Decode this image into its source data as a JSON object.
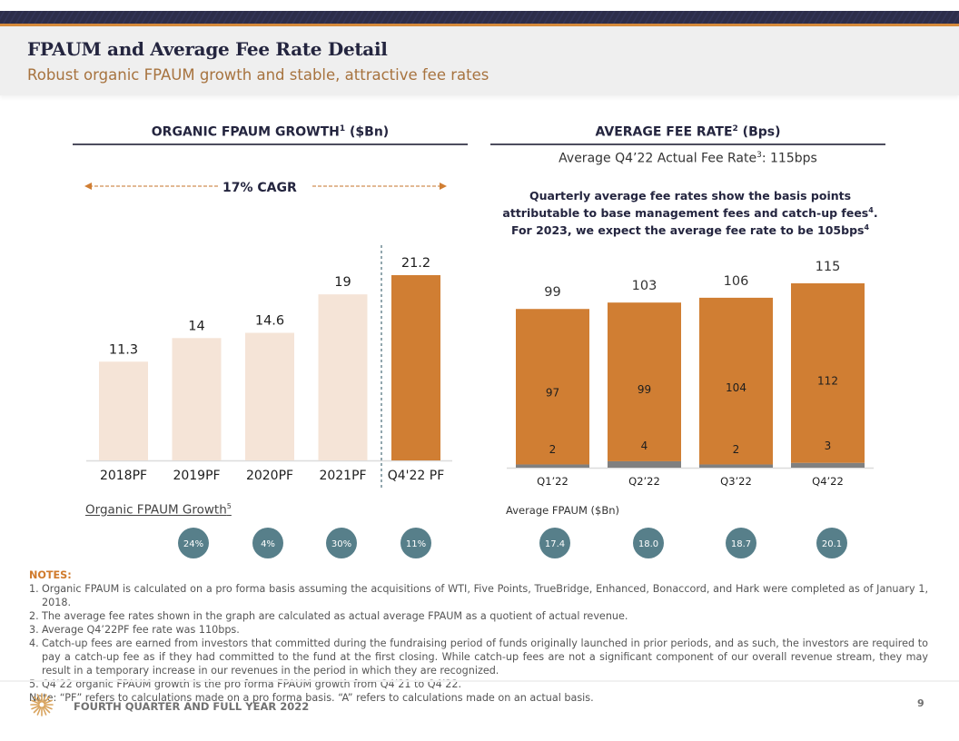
{
  "header": {
    "title": "FPAUM and Average Fee Rate Detail",
    "subtitle": "Robust organic FPAUM growth and stable, attractive fee rates"
  },
  "left_section": {
    "heading": "ORGANIC FPAUM GROWTH",
    "heading_sup": "1",
    "heading_suffix": " ($Bn)",
    "cagr_label": "17% CAGR",
    "growth_label": "Organic FPAUM Growth",
    "growth_label_sup": "5"
  },
  "right_section": {
    "heading": "AVERAGE FEE RATE",
    "heading_sup": "2",
    "heading_suffix": " (Bps)",
    "subheading": "Average Q4’22 Actual Fee Rate",
    "subheading_sup": "3",
    "subheading_suffix": ": 115bps",
    "note_part1": "Quarterly average fee rates show the basis points attributable to base management fees and catch-up fees",
    "note_sup1": "4",
    "note_part2": ". For 2023, we expect the average fee rate to be 105bps",
    "note_sup2": "4",
    "fpaum_label": "Average FPAUM ($Bn)"
  },
  "colors": {
    "navy": "#24253f",
    "orange": "#d07e33",
    "light_bar": "#f5e4d7",
    "catchup_grey": "#808080",
    "bubble": "#577f8a",
    "subtitle": "#a7733f"
  },
  "chart_data": [
    {
      "type": "bar",
      "title": "ORGANIC FPAUM GROWTH ($Bn)",
      "categories": [
        "2018PF",
        "2019PF",
        "2020PF",
        "2021PF",
        "Q4'22 PF"
      ],
      "values": [
        11.3,
        14,
        14.6,
        19,
        21.2
      ],
      "labels": [
        "11.3",
        "14",
        "14.6",
        "19",
        "21.2"
      ],
      "highlight_index": 4,
      "annotation": "17% CAGR",
      "growth_row": {
        "label": "Organic FPAUM Growth",
        "categories": [
          "2019PF",
          "2020PF",
          "2021PF",
          "Q4'22 PF"
        ],
        "values": [
          "24%",
          "4%",
          "30%",
          "11%"
        ]
      },
      "xlabel": "",
      "ylabel": "",
      "ylim": [
        0,
        21.2
      ],
      "grid": false
    },
    {
      "type": "bar",
      "stacked": true,
      "title": "AVERAGE FEE RATE (Bps)",
      "categories": [
        "Q1’22",
        "Q2’22",
        "Q3’22",
        "Q4’22"
      ],
      "series": [
        {
          "name": "Catch-up fees",
          "values": [
            2,
            4,
            2,
            3
          ],
          "color": "#808080"
        },
        {
          "name": "Base management fees",
          "values": [
            97,
            99,
            104,
            112
          ],
          "color": "#d07e33"
        }
      ],
      "totals": [
        99,
        103,
        106,
        115
      ],
      "fpaum_row": {
        "label": "Average FPAUM ($Bn)",
        "values": [
          "17.4",
          "18.0",
          "18.7",
          "20.1"
        ]
      },
      "xlabel": "",
      "ylabel": "",
      "ylim": [
        0,
        115
      ],
      "grid": false
    }
  ],
  "notes": {
    "heading": "NOTES:",
    "items": [
      {
        "num": "1.",
        "text": "Organic FPAUM is calculated on a pro forma basis assuming the acquisitions of WTI, Five Points, TrueBridge, Enhanced, Bonaccord, and Hark were completed as of January 1, 2018."
      },
      {
        "num": "2.",
        "text": "The average fee rates shown in the graph are calculated as actual average FPAUM as a quotient of actual revenue."
      },
      {
        "num": "3.",
        "text": "Average Q4’22PF fee rate was 110bps."
      },
      {
        "num": "4.",
        "text": "Catch-up fees are earned from investors that committed during the fundraising period of funds originally launched in prior periods, and as such, the investors are required to pay a catch-up fee as if they had committed to the fund at the first closing. While catch-up fees are not a significant component of our overall revenue stream, they may result in a temporary increase in our revenues in the period in which they are recognized."
      },
      {
        "num": "5.",
        "text": "Q4’22 organic FPAUM growth is the pro forma FPAUM growth from Q4’21 to Q4’22."
      }
    ],
    "footnote": "Note: “PF” refers to calculations made on a pro forma basis. “A” refers to calculations made on an actual basis."
  },
  "footer": {
    "text": "FOURTH QUARTER AND FULL YEAR 2022",
    "page": "9",
    "logo_icon": "starburst-logo-icon"
  }
}
